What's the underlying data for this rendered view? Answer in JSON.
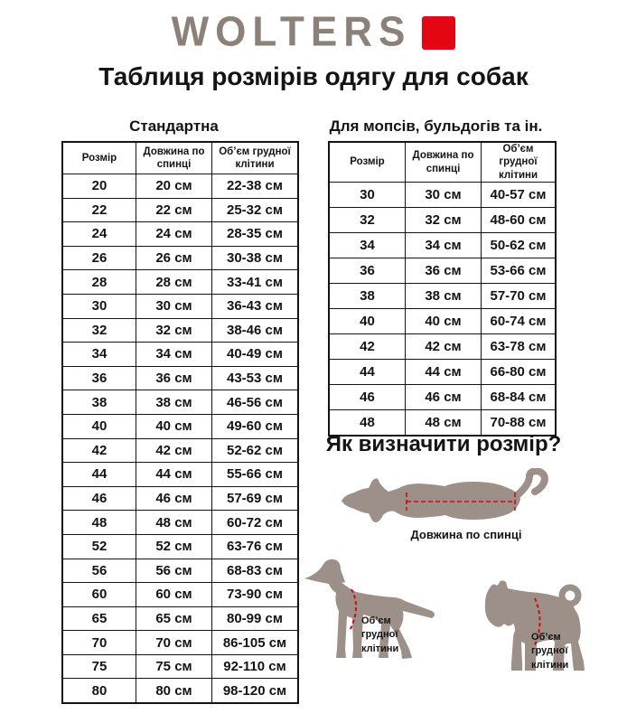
{
  "logo": {
    "text": "WOLTERS"
  },
  "page_title": "Таблиця розмірів одягу для собак",
  "standard_table": {
    "title": "Стандартна",
    "headers": [
      "Розмір",
      "Довжина по спинці",
      "Об’єм грудної клітини"
    ],
    "rows": [
      [
        "20",
        "20 см",
        "22-38 см"
      ],
      [
        "22",
        "22 см",
        "25-32 см"
      ],
      [
        "24",
        "24 см",
        "28-35 см"
      ],
      [
        "26",
        "26 см",
        "30-38 см"
      ],
      [
        "28",
        "28 см",
        "33-41 см"
      ],
      [
        "30",
        "30 см",
        "36-43 см"
      ],
      [
        "32",
        "32 см",
        "38-46 см"
      ],
      [
        "34",
        "34 см",
        "40-49 см"
      ],
      [
        "36",
        "36 см",
        "43-53 см"
      ],
      [
        "38",
        "38 см",
        "46-56 см"
      ],
      [
        "40",
        "40 см",
        "49-60 см"
      ],
      [
        "42",
        "42 см",
        "52-62 см"
      ],
      [
        "44",
        "44 см",
        "55-66 см"
      ],
      [
        "46",
        "46 см",
        "57-69 см"
      ],
      [
        "48",
        "48 см",
        "60-72 см"
      ],
      [
        "52",
        "52 см",
        "63-76 см"
      ],
      [
        "56",
        "56 см",
        "68-83 см"
      ],
      [
        "60",
        "60 см",
        "73-90 см"
      ],
      [
        "65",
        "65 см",
        "80-99 см"
      ],
      [
        "70",
        "70 см",
        "86-105 см"
      ],
      [
        "75",
        "75 см",
        "92-110 см"
      ],
      [
        "80",
        "80 см",
        "98-120 см"
      ]
    ]
  },
  "pug_table": {
    "title": "Для мопсів, бульдогів та ін.",
    "headers": [
      "Розмір",
      "Довжина по спинці",
      "Об’єм грудної клітини"
    ],
    "rows": [
      [
        "30",
        "30 см",
        "40-57 см"
      ],
      [
        "32",
        "32 см",
        "48-60 см"
      ],
      [
        "34",
        "34 см",
        "50-62 см"
      ],
      [
        "36",
        "36 см",
        "53-66 см"
      ],
      [
        "38",
        "38 см",
        "57-70 см"
      ],
      [
        "40",
        "40 см",
        "60-74 см"
      ],
      [
        "42",
        "42 см",
        "63-78 см"
      ],
      [
        "44",
        "44 см",
        "66-80 см"
      ],
      [
        "46",
        "46 см",
        "68-84 см"
      ],
      [
        "48",
        "48 см",
        "70-88 см"
      ]
    ]
  },
  "how_to": {
    "title": "Як визначити розмір?",
    "back_length_label": "Довжина по спинці",
    "chest_label_left": "Об’єм\nгрудної\nклітини",
    "chest_label_right": "Об’єм\nгрудної\nклітини"
  },
  "colors": {
    "logo_taupe": "#8c8178",
    "brand_red": "#e30613",
    "dog_silhouette": "#9c9089",
    "measure_red": "#cf0a10"
  }
}
